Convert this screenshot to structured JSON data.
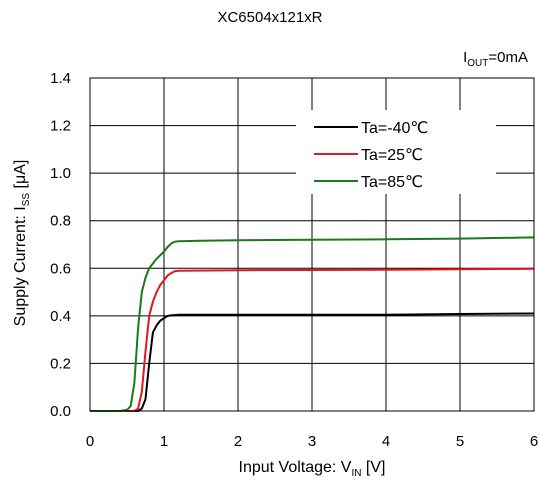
{
  "chart_data": {
    "type": "line",
    "title": "XC6504x121xR",
    "condition": {
      "main": "I",
      "sub": "OUT",
      "rest": "=0mA"
    },
    "xlabel": {
      "main": "Input Voltage: V",
      "sub": "IN",
      "rest": " [V]"
    },
    "ylabel": {
      "main": "Supply Current: I",
      "sub": "SS",
      "rest": " [μA]"
    },
    "xlim": [
      0,
      6
    ],
    "ylim": [
      0,
      1.4
    ],
    "xticks": [
      "0",
      "1",
      "2",
      "3",
      "4",
      "5",
      "6"
    ],
    "yticks": [
      "0.0",
      "0.2",
      "0.4",
      "0.6",
      "0.8",
      "1.0",
      "1.2",
      "1.4"
    ],
    "grid": true,
    "legend_position": "top-right",
    "series": [
      {
        "name": "Ta=-40℃",
        "color": "#000000",
        "x": [
          0,
          0.5,
          0.65,
          0.7,
          0.75,
          0.8,
          0.85,
          0.9,
          0.95,
          1.0,
          1.05,
          1.1,
          1.2,
          2,
          3,
          4,
          5,
          6
        ],
        "y": [
          0.0,
          0.0,
          0.0,
          0.01,
          0.05,
          0.2,
          0.33,
          0.36,
          0.38,
          0.39,
          0.4,
          0.402,
          0.405,
          0.405,
          0.405,
          0.405,
          0.408,
          0.41
        ]
      },
      {
        "name": "Ta=25℃",
        "color": "#e8141c",
        "x": [
          0,
          0.5,
          0.6,
          0.65,
          0.7,
          0.75,
          0.8,
          0.85,
          0.9,
          0.95,
          1.0,
          1.05,
          1.1,
          1.15,
          1.2,
          2,
          3,
          4,
          5,
          6
        ],
        "y": [
          0.0,
          0.0,
          0.0,
          0.01,
          0.08,
          0.25,
          0.4,
          0.46,
          0.5,
          0.53,
          0.55,
          0.57,
          0.58,
          0.588,
          0.59,
          0.592,
          0.593,
          0.594,
          0.596,
          0.598
        ]
      },
      {
        "name": "Ta=85℃",
        "color": "#1a7a1a",
        "x": [
          0,
          0.4,
          0.5,
          0.55,
          0.6,
          0.65,
          0.7,
          0.75,
          0.8,
          0.9,
          1.0,
          1.05,
          1.1,
          1.15,
          1.2,
          1.5,
          2,
          3,
          4,
          5,
          6
        ],
        "y": [
          0.0,
          0.0,
          0.005,
          0.02,
          0.12,
          0.35,
          0.5,
          0.56,
          0.6,
          0.64,
          0.67,
          0.69,
          0.705,
          0.712,
          0.714,
          0.716,
          0.718,
          0.72,
          0.722,
          0.725,
          0.73
        ]
      }
    ]
  }
}
